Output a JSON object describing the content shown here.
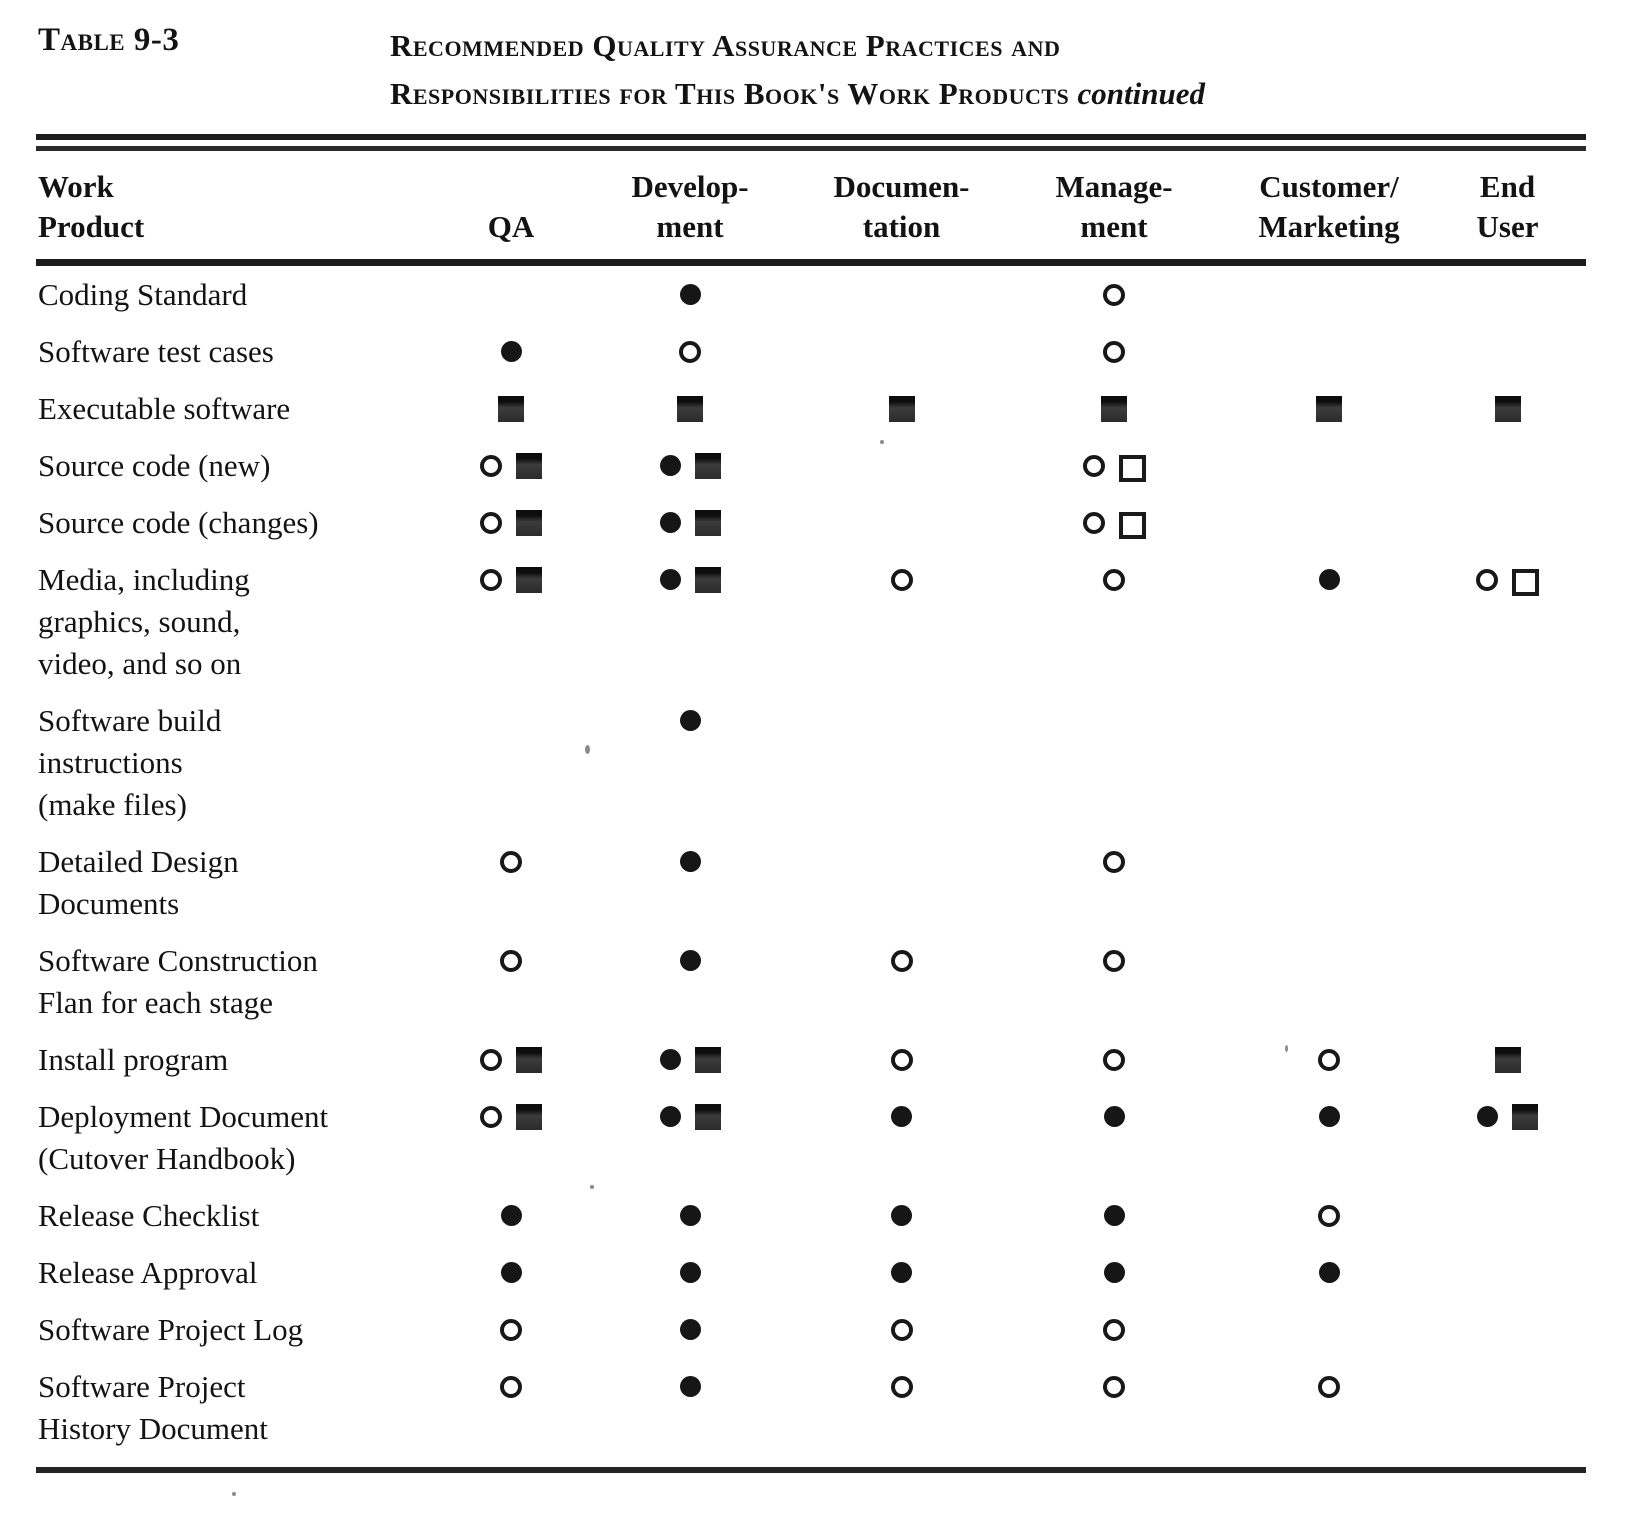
{
  "page": {
    "table_label": "Table 9-3",
    "title_line1": "Recommended Quality Assurance Practices and",
    "title_line2": "Responsibilities for This Book's Work Products",
    "title_suffix": "continued"
  },
  "symbols_legend": {
    "fc": "filled-circle",
    "oc": "open-circle",
    "fs": "filled-square",
    "os": "open-square"
  },
  "table": {
    "columns": [
      "Work\nProduct",
      "QA",
      "Develop-\nment",
      "Documen-\ntation",
      "Manage-\nment",
      "Customer/\nMarketing",
      "End\nUser"
    ],
    "rows": [
      {
        "label": "Coding Standard",
        "cells": [
          [],
          [
            "fc"
          ],
          [],
          [
            "oc"
          ],
          [],
          []
        ]
      },
      {
        "label": "Software test cases",
        "cells": [
          [
            "fc"
          ],
          [
            "oc"
          ],
          [],
          [
            "oc"
          ],
          [],
          []
        ]
      },
      {
        "label": "Executable software",
        "cells": [
          [
            "fs"
          ],
          [
            "fs"
          ],
          [
            "fs"
          ],
          [
            "fs"
          ],
          [
            "fs"
          ],
          [
            "fs"
          ]
        ]
      },
      {
        "label": "Source code (new)",
        "cells": [
          [
            "oc",
            "fs"
          ],
          [
            "fc",
            "fs"
          ],
          [],
          [
            "oc",
            "os"
          ],
          [],
          []
        ]
      },
      {
        "label": "Source code (changes)",
        "cells": [
          [
            "oc",
            "fs"
          ],
          [
            "fc",
            "fs"
          ],
          [],
          [
            "oc",
            "os"
          ],
          [],
          []
        ]
      },
      {
        "label": "Media, including\ngraphics, sound,\nvideo, and so on",
        "cells": [
          [
            "oc",
            "fs"
          ],
          [
            "fc",
            "fs"
          ],
          [
            "oc"
          ],
          [
            "oc"
          ],
          [
            "fc"
          ],
          [
            "oc",
            "os"
          ]
        ]
      },
      {
        "label": "Software  build\ninstructions\n(make files)",
        "cells": [
          [],
          [
            "fc"
          ],
          [],
          [],
          [],
          []
        ]
      },
      {
        "label": "Detailed Design\nDocuments",
        "cells": [
          [
            "oc"
          ],
          [
            "fc"
          ],
          [],
          [
            "oc"
          ],
          [],
          []
        ]
      },
      {
        "label": "Software  Construction\nFlan for each stage",
        "cells": [
          [
            "oc"
          ],
          [
            "fc"
          ],
          [
            "oc"
          ],
          [
            "oc"
          ],
          [],
          []
        ]
      },
      {
        "label": "Install program",
        "cells": [
          [
            "oc",
            "fs"
          ],
          [
            "fc",
            "fs"
          ],
          [
            "oc"
          ],
          [
            "oc"
          ],
          [
            "oc"
          ],
          [
            "fs"
          ]
        ]
      },
      {
        "label": "Deployment Document\n(Cutover  Handbook)",
        "cells": [
          [
            "oc",
            "fs"
          ],
          [
            "fc",
            "fs"
          ],
          [
            "fc"
          ],
          [
            "fc"
          ],
          [
            "fc"
          ],
          [
            "fc",
            "fs"
          ]
        ]
      },
      {
        "label": "Release  Checklist",
        "cells": [
          [
            "fc"
          ],
          [
            "fc"
          ],
          [
            "fc"
          ],
          [
            "fc"
          ],
          [
            "oc"
          ],
          []
        ]
      },
      {
        "label": "Release  Approval",
        "cells": [
          [
            "fc"
          ],
          [
            "fc"
          ],
          [
            "fc"
          ],
          [
            "fc"
          ],
          [
            "fc"
          ],
          []
        ]
      },
      {
        "label": "Software Project Log",
        "cells": [
          [
            "oc"
          ],
          [
            "fc"
          ],
          [
            "oc"
          ],
          [
            "oc"
          ],
          [],
          []
        ]
      },
      {
        "label": "Software Project\nHistory Document",
        "cells": [
          [
            "oc"
          ],
          [
            "fc"
          ],
          [
            "oc"
          ],
          [
            "oc"
          ],
          [
            "oc"
          ],
          []
        ]
      }
    ]
  }
}
